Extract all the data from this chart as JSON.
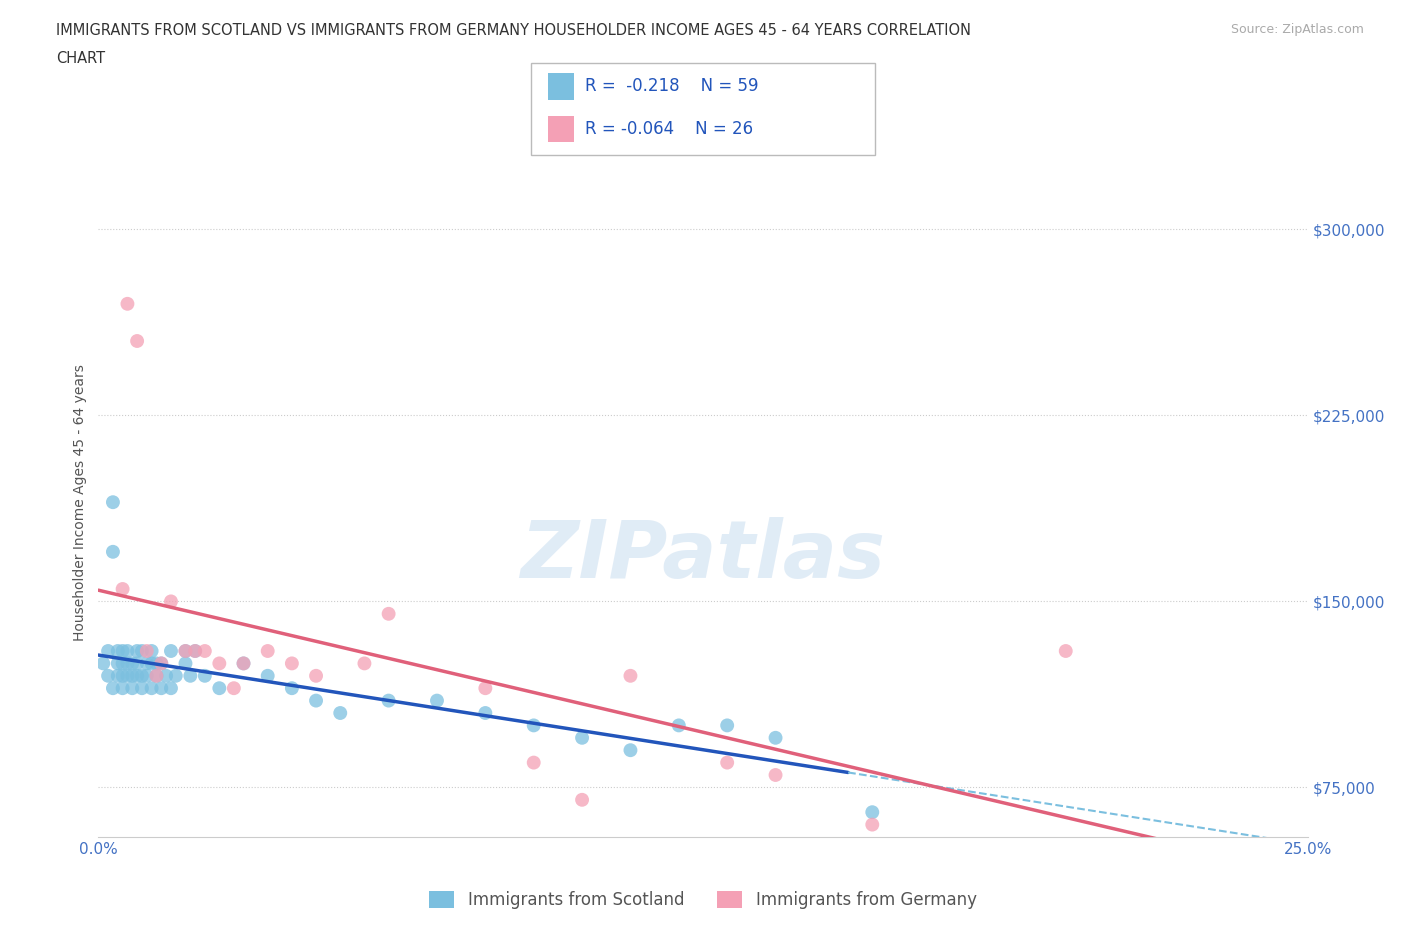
{
  "title_line1": "IMMIGRANTS FROM SCOTLAND VS IMMIGRANTS FROM GERMANY HOUSEHOLDER INCOME AGES 45 - 64 YEARS CORRELATION",
  "title_line2": "CHART",
  "source": "Source: ZipAtlas.com",
  "ylabel": "Householder Income Ages 45 - 64 years",
  "xlim": [
    0.0,
    0.25
  ],
  "ylim": [
    55000,
    325000
  ],
  "yticks": [
    75000,
    150000,
    225000,
    300000
  ],
  "ytick_labels": [
    "$75,000",
    "$150,000",
    "$225,000",
    "$300,000"
  ],
  "xticks": [
    0.0,
    0.05,
    0.1,
    0.15,
    0.2,
    0.25
  ],
  "xtick_labels": [
    "0.0%",
    "",
    "",
    "",
    "",
    "25.0%"
  ],
  "scotland_R": -0.218,
  "scotland_N": 59,
  "germany_R": -0.064,
  "germany_N": 26,
  "scotland_color": "#7bbfdf",
  "germany_color": "#f4a0b5",
  "scotland_line_color": "#2255bb",
  "germany_line_color": "#e0607a",
  "scotland_scatter_x": [
    0.001,
    0.002,
    0.002,
    0.003,
    0.003,
    0.003,
    0.004,
    0.004,
    0.004,
    0.005,
    0.005,
    0.005,
    0.005,
    0.006,
    0.006,
    0.006,
    0.007,
    0.007,
    0.007,
    0.008,
    0.008,
    0.008,
    0.009,
    0.009,
    0.009,
    0.01,
    0.01,
    0.011,
    0.011,
    0.011,
    0.012,
    0.012,
    0.013,
    0.013,
    0.014,
    0.015,
    0.015,
    0.016,
    0.018,
    0.018,
    0.019,
    0.02,
    0.022,
    0.025,
    0.03,
    0.035,
    0.04,
    0.045,
    0.05,
    0.06,
    0.07,
    0.08,
    0.09,
    0.1,
    0.11,
    0.12,
    0.13,
    0.14,
    0.16
  ],
  "scotland_scatter_y": [
    125000,
    120000,
    130000,
    190000,
    170000,
    115000,
    125000,
    120000,
    130000,
    130000,
    120000,
    125000,
    115000,
    125000,
    120000,
    130000,
    125000,
    120000,
    115000,
    130000,
    120000,
    125000,
    115000,
    130000,
    120000,
    125000,
    120000,
    130000,
    115000,
    125000,
    120000,
    125000,
    115000,
    125000,
    120000,
    130000,
    115000,
    120000,
    130000,
    125000,
    120000,
    130000,
    120000,
    115000,
    125000,
    120000,
    115000,
    110000,
    105000,
    110000,
    110000,
    105000,
    100000,
    95000,
    90000,
    100000,
    100000,
    95000,
    65000
  ],
  "germany_scatter_x": [
    0.005,
    0.006,
    0.008,
    0.01,
    0.012,
    0.013,
    0.015,
    0.018,
    0.02,
    0.022,
    0.025,
    0.028,
    0.03,
    0.035,
    0.04,
    0.045,
    0.055,
    0.06,
    0.08,
    0.09,
    0.1,
    0.11,
    0.13,
    0.14,
    0.16,
    0.2
  ],
  "germany_scatter_y": [
    155000,
    270000,
    255000,
    130000,
    120000,
    125000,
    150000,
    130000,
    130000,
    130000,
    125000,
    115000,
    125000,
    130000,
    125000,
    120000,
    125000,
    145000,
    115000,
    85000,
    70000,
    120000,
    85000,
    80000,
    60000,
    130000
  ],
  "watermark": "ZIPatlas",
  "legend_scotland": "Immigrants from Scotland",
  "legend_germany": "Immigrants from Germany",
  "background_color": "#ffffff",
  "grid_color": "#cccccc",
  "text_color": "#2255aa"
}
